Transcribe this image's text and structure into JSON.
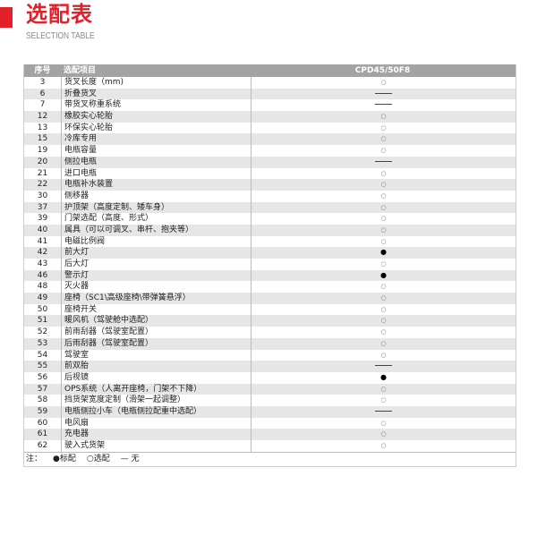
{
  "header": {
    "title": "选配表",
    "subtitle": "SELECTION TABLE",
    "accent": "#e3202a"
  },
  "table": {
    "columns": [
      "序号",
      "选配项目",
      "CPD45/50F8"
    ],
    "rows": [
      {
        "no": "3",
        "item": "货叉长度（mm)",
        "value": "optional"
      },
      {
        "no": "6",
        "item": "折叠货叉",
        "value": "none"
      },
      {
        "no": "7",
        "item": "带货叉称重系统",
        "value": "none"
      },
      {
        "no": "12",
        "item": "橡胶实心轮胎",
        "value": "optional"
      },
      {
        "no": "13",
        "item": "环保实心轮胎",
        "value": "optional"
      },
      {
        "no": "15",
        "item": "冷库专用",
        "value": "optional"
      },
      {
        "no": "19",
        "item": "电瓶容量",
        "value": "optional"
      },
      {
        "no": "20",
        "item": "侧拉电瓶",
        "value": "none"
      },
      {
        "no": "21",
        "item": "进口电瓶",
        "value": "optional"
      },
      {
        "no": "22",
        "item": "电瓶补水装置",
        "value": "optional"
      },
      {
        "no": "30",
        "item": "侧移器",
        "value": "optional"
      },
      {
        "no": "37",
        "item": "护顶架（高度定制、矮车身）",
        "value": "optional"
      },
      {
        "no": "39",
        "item": "门架选配（高度、形式）",
        "value": "optional"
      },
      {
        "no": "40",
        "item": "属具（可以可调叉、串杆、抱夹等）",
        "value": "optional"
      },
      {
        "no": "41",
        "item": "电磁比例阀",
        "value": "optional"
      },
      {
        "no": "42",
        "item": "前大灯",
        "value": "standard"
      },
      {
        "no": "43",
        "item": "后大灯",
        "value": "optional"
      },
      {
        "no": "46",
        "item": "警示灯",
        "value": "standard"
      },
      {
        "no": "48",
        "item": "灭火器",
        "value": "optional"
      },
      {
        "no": "49",
        "item": "座椅（SC1\\高级座椅\\带弹簧悬浮）",
        "value": "optional"
      },
      {
        "no": "50",
        "item": "座椅开关",
        "value": "optional"
      },
      {
        "no": "51",
        "item": "暖风机（驾驶舱中选配）",
        "value": "optional"
      },
      {
        "no": "52",
        "item": "前雨刮器（驾驶室配置）",
        "value": "optional"
      },
      {
        "no": "53",
        "item": "后雨刮器（驾驶室配置）",
        "value": "optional"
      },
      {
        "no": "54",
        "item": "驾驶室",
        "value": "optional"
      },
      {
        "no": "55",
        "item": "前双胎",
        "value": "none"
      },
      {
        "no": "56",
        "item": "后视镜",
        "value": "standard"
      },
      {
        "no": "57",
        "item": "OPS系统（人离开座椅，门架不下降）",
        "value": "optional"
      },
      {
        "no": "58",
        "item": "挡货架宽度定制（滑架一起调整）",
        "value": "optional"
      },
      {
        "no": "59",
        "item": "电瓶侧拉小车（电瓶侧拉配重中选配）",
        "value": "none"
      },
      {
        "no": "60",
        "item": "电风扇",
        "value": "optional"
      },
      {
        "no": "61",
        "item": "充电器",
        "value": "optional"
      },
      {
        "no": "62",
        "item": "驶入式货架",
        "value": "optional"
      }
    ]
  },
  "symbols": {
    "standard": "●",
    "optional": "○"
  },
  "note": {
    "prefix": "注：",
    "standard": "●标配",
    "optional": "○选配",
    "none": "— 无"
  }
}
